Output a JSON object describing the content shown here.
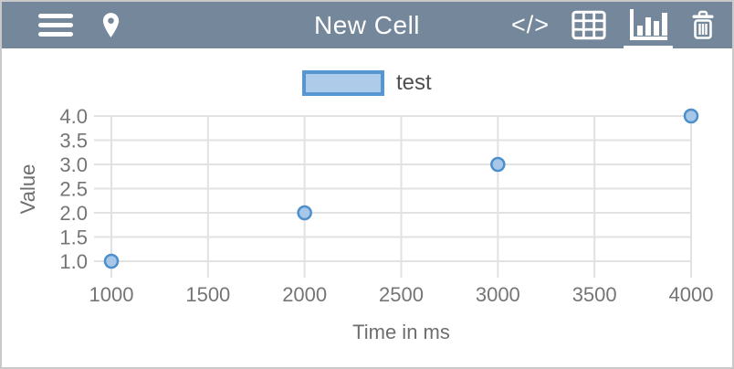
{
  "header": {
    "title": "New Cell",
    "bg_color": "#75879A",
    "code_icon_label": "</>",
    "icons": {
      "left": [
        "menu",
        "location-pin"
      ],
      "right": [
        "code",
        "table",
        "bar-chart",
        "trash"
      ],
      "active_icon": "bar-chart"
    }
  },
  "legend": {
    "label": "test",
    "swatch_fill": "#AECBE9",
    "swatch_border": "#5697D3"
  },
  "chart_data": {
    "type": "scatter",
    "title": "",
    "xlabel": "Time in ms",
    "ylabel": "Value",
    "series": [
      {
        "name": "test",
        "x": [
          1000,
          2000,
          3000,
          4000
        ],
        "y": [
          1.0,
          2.0,
          3.0,
          4.0
        ]
      }
    ],
    "xlim": [
      1000,
      4000
    ],
    "ylim": [
      1.0,
      4.0
    ],
    "x_ticks": [
      1000,
      1500,
      2000,
      2500,
      3000,
      3500,
      4000
    ],
    "y_tick_labels": [
      "1.0",
      "1.5",
      "2.0",
      "2.5",
      "3.0",
      "3.5",
      "4.0"
    ],
    "grid": true,
    "legend_position": "top-center",
    "grid_color": "#E2E2E2",
    "tick_text_color": "#757575",
    "point_fill": "#A7C7E9",
    "point_border": "#4D8FCB"
  }
}
